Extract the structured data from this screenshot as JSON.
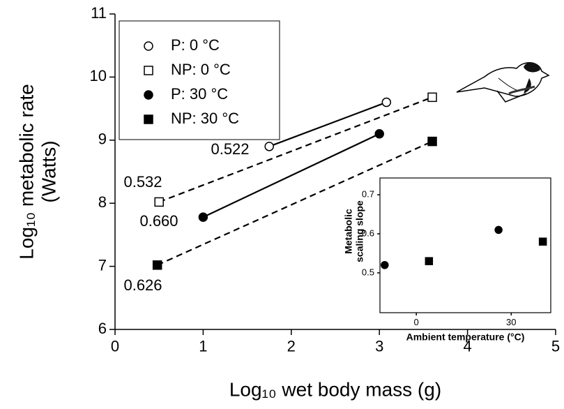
{
  "chart_data": [
    {
      "type": "line",
      "ylabel": [
        "Log₁₀ metabolic rate",
        "(Watts)"
      ],
      "xlabel": "Log₁₀ wet body mass (g)",
      "xlim": [
        0,
        5
      ],
      "ylim": [
        6,
        11
      ],
      "xticks": [
        0,
        1,
        2,
        3,
        4,
        5
      ],
      "yticks": [
        6,
        7,
        8,
        9,
        10,
        11
      ],
      "legend": "upper left",
      "series": [
        {
          "name": "P: 0 °C",
          "color": "#000000",
          "marker": "circle",
          "filled": false,
          "dashed": false,
          "x": [
            1.75,
            3.08
          ],
          "values": [
            8.9,
            9.6
          ]
        },
        {
          "name": "NP: 0 °C",
          "color": "#000000",
          "marker": "square",
          "filled": false,
          "dashed": true,
          "x": [
            0.5,
            3.6
          ],
          "values": [
            8.02,
            9.68
          ]
        },
        {
          "name": "P: 30 °C",
          "color": "#000000",
          "marker": "circle",
          "filled": true,
          "dashed": false,
          "x": [
            1.0,
            3.0
          ],
          "values": [
            7.78,
            9.1
          ]
        },
        {
          "name": "NP: 30 °C",
          "color": "#000000",
          "marker": "square",
          "filled": true,
          "dashed": true,
          "x": [
            0.48,
            3.6
          ],
          "values": [
            7.02,
            8.98
          ]
        }
      ],
      "annotations": [
        "0.522",
        "0.532",
        "0.660",
        "0.626"
      ]
    },
    {
      "type": "scatter",
      "ylabel": [
        "Metabolic",
        "scaling slope"
      ],
      "xlabel": "Ambient temperature (°C)",
      "xlim": [
        -11.5,
        42.5
      ],
      "ylim": [
        0.398,
        0.743
      ],
      "xticks": [
        0,
        30
      ],
      "yticks": [
        0.5,
        0.6,
        0.7
      ],
      "series": [
        {
          "color": "#000000",
          "marker": "circle",
          "filled": true,
          "x": [
            -10,
            26
          ],
          "values": [
            0.52,
            0.61
          ]
        },
        {
          "color": "#000000",
          "marker": "square",
          "filled": true,
          "x": [
            4,
            40
          ],
          "values": [
            0.53,
            0.58
          ]
        }
      ]
    }
  ]
}
